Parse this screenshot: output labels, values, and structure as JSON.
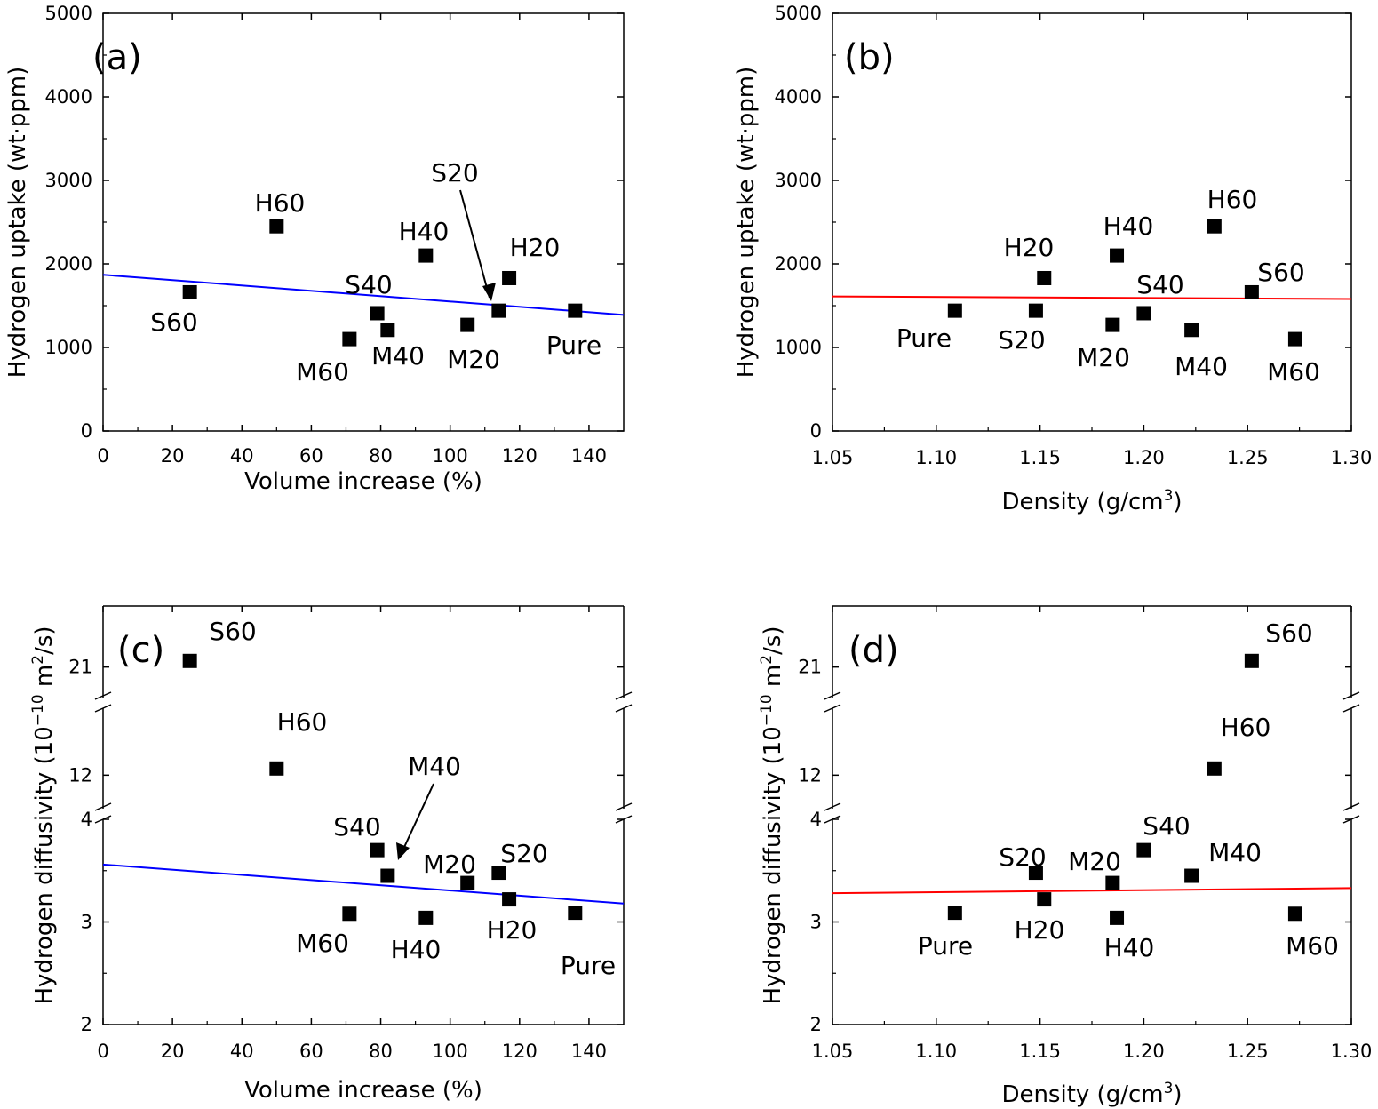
{
  "figure": {
    "background": "#ffffff",
    "marker_color": "#000000"
  },
  "chart_data": [
    {
      "id": "a",
      "type": "scatter",
      "panel_label": "(a)",
      "xlabel": "Volume increase (%)",
      "ylabel": "Hydrogen uptake (wt·ppm)",
      "xlim": [
        0,
        150
      ],
      "ylim": [
        0,
        5000
      ],
      "xticks": [
        0,
        20,
        40,
        60,
        80,
        100,
        120,
        140
      ],
      "xtick_labels": [
        "0",
        "20",
        "40",
        "60",
        "80",
        "100",
        "120",
        "140"
      ],
      "yticks": [
        0,
        1000,
        2000,
        3000,
        4000,
        5000
      ],
      "ytick_labels": [
        "0",
        "1000",
        "2000",
        "3000",
        "4000",
        "5000"
      ],
      "points": [
        {
          "label": "Pure",
          "x": 136,
          "y": 1440
        },
        {
          "label": "H20",
          "x": 117,
          "y": 1830
        },
        {
          "label": "S20",
          "x": 114,
          "y": 1440
        },
        {
          "label": "M20",
          "x": 105,
          "y": 1270
        },
        {
          "label": "H40",
          "x": 93,
          "y": 2100
        },
        {
          "label": "S40",
          "x": 79,
          "y": 1410
        },
        {
          "label": "M40",
          "x": 82,
          "y": 1210
        },
        {
          "label": "M60",
          "x": 71,
          "y": 1100
        },
        {
          "label": "H60",
          "x": 50,
          "y": 2450
        },
        {
          "label": "S60",
          "x": 25,
          "y": 1660
        }
      ],
      "fit_line": {
        "color": "#0000ff",
        "x": [
          0,
          150
        ],
        "y": [
          1870,
          1390
        ]
      }
    },
    {
      "id": "b",
      "type": "scatter",
      "panel_label": "(b)",
      "xlabel": "Density (g/cm",
      "xlabel_sup": "3",
      "xlabel_end": ")",
      "ylabel": "Hydrogen uptake (wt·ppm)",
      "xlim": [
        1.05,
        1.3
      ],
      "ylim": [
        0,
        5000
      ],
      "xticks": [
        1.05,
        1.1,
        1.15,
        1.2,
        1.25,
        1.3
      ],
      "xtick_labels": [
        "1.05",
        "1.10",
        "1.15",
        "1.20",
        "1.25",
        "1.30"
      ],
      "yticks": [
        0,
        1000,
        2000,
        3000,
        4000,
        5000
      ],
      "ytick_labels": [
        "0",
        "1000",
        "2000",
        "3000",
        "4000",
        "5000"
      ],
      "points": [
        {
          "label": "Pure",
          "x": 1.109,
          "y": 1440
        },
        {
          "label": "S20",
          "x": 1.148,
          "y": 1440
        },
        {
          "label": "H20",
          "x": 1.152,
          "y": 1830
        },
        {
          "label": "M20",
          "x": 1.185,
          "y": 1270
        },
        {
          "label": "H40",
          "x": 1.187,
          "y": 2100
        },
        {
          "label": "S40",
          "x": 1.2,
          "y": 1410
        },
        {
          "label": "M40",
          "x": 1.223,
          "y": 1210
        },
        {
          "label": "H60",
          "x": 1.234,
          "y": 2450
        },
        {
          "label": "S60",
          "x": 1.252,
          "y": 1660
        },
        {
          "label": "M60",
          "x": 1.273,
          "y": 1100
        }
      ],
      "fit_line": {
        "color": "#ff0000",
        "x": [
          1.05,
          1.3
        ],
        "y": [
          1610,
          1580
        ]
      }
    },
    {
      "id": "c",
      "type": "scatter",
      "panel_label": "(c)",
      "xlabel": "Volume increase (%)",
      "ylabel": "Hydrogen diffusivity (10",
      "ylabel_sup": "−10",
      "ylabel_mid": " m",
      "ylabel_sup2": "2",
      "ylabel_end": "/s)",
      "broken_axis": true,
      "y_segments": [
        {
          "min": 2,
          "max": 4
        },
        {
          "min": 11.5,
          "max": 13
        },
        {
          "min": 20.5,
          "max": 22
        }
      ],
      "xlim": [
        0,
        150
      ],
      "xticks": [
        0,
        20,
        40,
        60,
        80,
        100,
        120,
        140
      ],
      "xtick_labels": [
        "0",
        "20",
        "40",
        "60",
        "80",
        "100",
        "120",
        "140"
      ],
      "yticks": [
        2,
        3,
        4,
        12,
        21
      ],
      "ytick_labels": [
        "2",
        "3",
        "4",
        "12",
        "21"
      ],
      "points": [
        {
          "label": "Pure",
          "x": 136,
          "y": 3.09
        },
        {
          "label": "H20",
          "x": 117,
          "y": 3.22
        },
        {
          "label": "S20",
          "x": 114,
          "y": 3.48
        },
        {
          "label": "M20",
          "x": 105,
          "y": 3.38
        },
        {
          "label": "H40",
          "x": 93,
          "y": 3.04
        },
        {
          "label": "S40",
          "x": 79,
          "y": 3.7
        },
        {
          "label": "M40",
          "x": 82,
          "y": 3.45
        },
        {
          "label": "M60",
          "x": 71,
          "y": 3.08
        },
        {
          "label": "H60",
          "x": 50,
          "y": 12.1
        },
        {
          "label": "S60",
          "x": 25,
          "y": 21.1
        }
      ],
      "fit_line": {
        "color": "#0000ff",
        "x": [
          0,
          150
        ],
        "y": [
          3.56,
          3.18
        ]
      }
    },
    {
      "id": "d",
      "type": "scatter",
      "panel_label": "(d)",
      "xlabel": "Density (g/cm",
      "xlabel_sup": "3",
      "xlabel_end": ")",
      "ylabel": "Hydrogen diffusivity (10",
      "ylabel_sup": "−10",
      "ylabel_mid": " m",
      "ylabel_sup2": "2",
      "ylabel_end": "/s)",
      "broken_axis": true,
      "y_segments": [
        {
          "min": 2,
          "max": 4
        },
        {
          "min": 11.5,
          "max": 13
        },
        {
          "min": 20.5,
          "max": 22
        }
      ],
      "xlim": [
        1.05,
        1.3
      ],
      "xticks": [
        1.05,
        1.1,
        1.15,
        1.2,
        1.25,
        1.3
      ],
      "xtick_labels": [
        "1.05",
        "1.10",
        "1.15",
        "1.20",
        "1.25",
        "1.30"
      ],
      "yticks": [
        2,
        3,
        4,
        12,
        21
      ],
      "ytick_labels": [
        "2",
        "3",
        "4",
        "12",
        "21"
      ],
      "points": [
        {
          "label": "Pure",
          "x": 1.109,
          "y": 3.09
        },
        {
          "label": "S20",
          "x": 1.148,
          "y": 3.48
        },
        {
          "label": "H20",
          "x": 1.152,
          "y": 3.22
        },
        {
          "label": "M20",
          "x": 1.185,
          "y": 3.38
        },
        {
          "label": "H40",
          "x": 1.187,
          "y": 3.04
        },
        {
          "label": "S40",
          "x": 1.2,
          "y": 3.7
        },
        {
          "label": "M40",
          "x": 1.223,
          "y": 3.45
        },
        {
          "label": "H60",
          "x": 1.234,
          "y": 12.1
        },
        {
          "label": "S60",
          "x": 1.252,
          "y": 21.1
        },
        {
          "label": "M60",
          "x": 1.273,
          "y": 3.08
        }
      ],
      "fit_line": {
        "color": "#ff0000",
        "x": [
          1.05,
          1.3
        ],
        "y": [
          3.28,
          3.33
        ]
      }
    }
  ]
}
